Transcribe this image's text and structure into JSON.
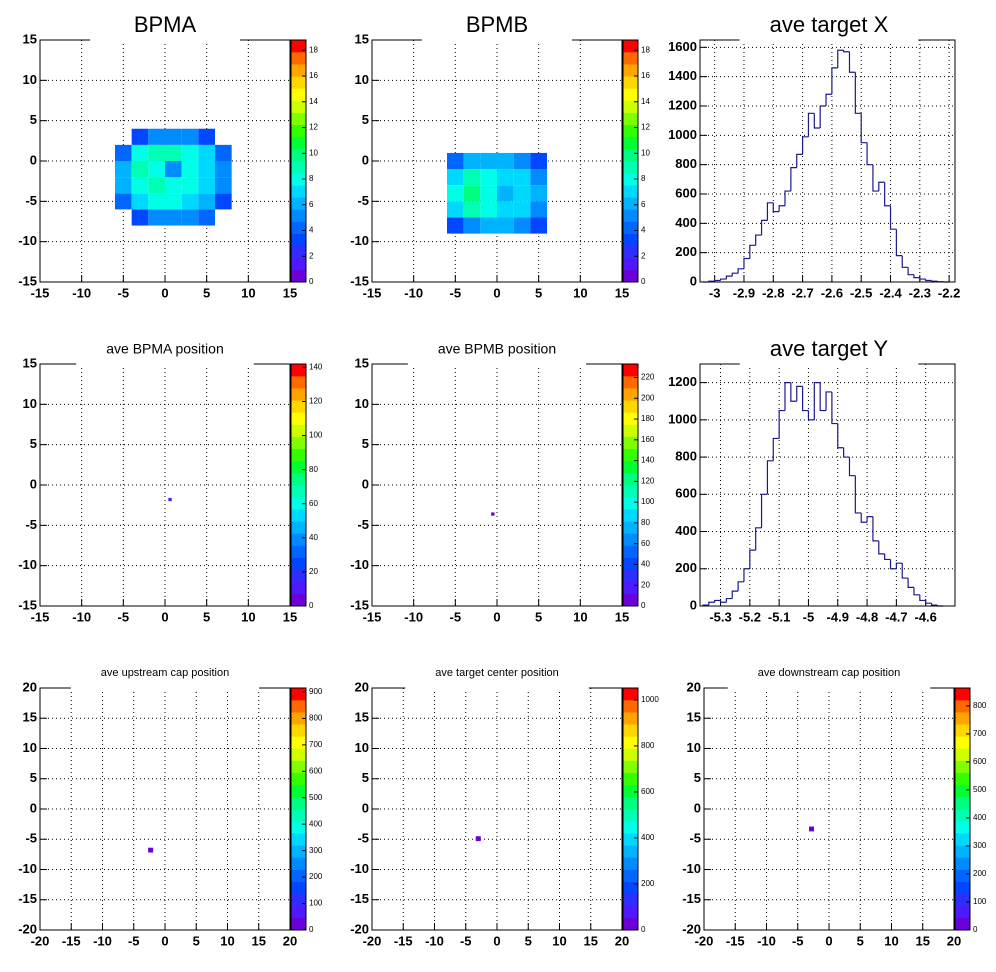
{
  "palette": [
    "#6b00d9",
    "#4d1aff",
    "#2e2eff",
    "#0047ff",
    "#0066ff",
    "#008cff",
    "#00b3ff",
    "#00d9ff",
    "#00ffe6",
    "#00ffb3",
    "#00ff80",
    "#00ff33",
    "#33ff00",
    "#80ff00",
    "#ccff00",
    "#ffff00",
    "#ffd700",
    "#ffa500",
    "#ff6a00",
    "#ff0000"
  ],
  "chart_data": [
    {
      "type": "heatmap",
      "title": "BPMA",
      "xbins": [
        -6,
        -4,
        -2,
        0,
        2,
        4,
        6,
        8
      ],
      "ybins": [
        -8,
        -6,
        -4,
        -2,
        0,
        2,
        4
      ],
      "z": [
        [
          0,
          3,
          5,
          5,
          5,
          4,
          0
        ],
        [
          4,
          7,
          8,
          8,
          7,
          6,
          3
        ],
        [
          6,
          8,
          9,
          8,
          8,
          7,
          5
        ],
        [
          6,
          9,
          8,
          5,
          8,
          7,
          5
        ],
        [
          4,
          8,
          9,
          9,
          8,
          7,
          4
        ],
        [
          0,
          3,
          5,
          5,
          5,
          3,
          0
        ]
      ],
      "xlim": [
        -15,
        15
      ],
      "ylim": [
        -15,
        15
      ],
      "xticks": [
        -15,
        -10,
        -5,
        0,
        5,
        10,
        15
      ],
      "yticks": [
        -15,
        -10,
        -5,
        0,
        5,
        10,
        15
      ],
      "zlim": [
        0,
        18.8
      ],
      "zticks": [
        0,
        2,
        4,
        6,
        8,
        10,
        12,
        14,
        16,
        18
      ],
      "grid": true
    },
    {
      "type": "heatmap",
      "title": "BPMB",
      "xbins": [
        -6,
        -4,
        -2,
        0,
        2,
        4,
        6
      ],
      "ybins": [
        -9,
        -7,
        -5,
        -3,
        -1,
        1
      ],
      "z": [
        [
          3,
          5,
          6,
          6,
          5,
          3
        ],
        [
          7,
          9,
          8,
          7,
          7,
          5
        ],
        [
          8,
          10,
          8,
          6,
          7,
          6
        ],
        [
          7,
          9,
          8,
          7,
          7,
          5
        ],
        [
          4,
          6,
          6,
          6,
          5,
          3
        ]
      ],
      "xlim": [
        -15,
        15
      ],
      "ylim": [
        -15,
        15
      ],
      "xticks": [
        -15,
        -10,
        -5,
        0,
        5,
        10,
        15
      ],
      "yticks": [
        -15,
        -10,
        -5,
        0,
        5,
        10,
        15
      ],
      "zlim": [
        0,
        18.8
      ],
      "zticks": [
        0,
        2,
        4,
        6,
        8,
        10,
        12,
        14,
        16,
        18
      ],
      "grid": true
    },
    {
      "type": "histogram",
      "title": "ave target X",
      "color": "#1a1a8c",
      "bins": [
        -3.04,
        -3.02,
        -3.0,
        -2.98,
        -2.96,
        -2.94,
        -2.92,
        -2.9,
        -2.88,
        -2.86,
        -2.84,
        -2.82,
        -2.8,
        -2.78,
        -2.76,
        -2.74,
        -2.72,
        -2.7,
        -2.68,
        -2.66,
        -2.64,
        -2.62,
        -2.6,
        -2.58,
        -2.56,
        -2.54,
        -2.52,
        -2.5,
        -2.48,
        -2.46,
        -2.44,
        -2.42,
        -2.4,
        -2.38,
        -2.36,
        -2.34,
        -2.32,
        -2.3,
        -2.28,
        -2.26,
        -2.24,
        -2.22,
        -2.2
      ],
      "counts": [
        0,
        5,
        10,
        20,
        40,
        60,
        90,
        160,
        250,
        320,
        420,
        540,
        480,
        520,
        620,
        780,
        870,
        990,
        1150,
        1050,
        1200,
        1280,
        1460,
        1580,
        1570,
        1430,
        1150,
        950,
        800,
        620,
        680,
        520,
        360,
        180,
        100,
        50,
        30,
        20,
        10,
        5,
        2,
        0
      ],
      "xlim": [
        -3.05,
        -2.18
      ],
      "ylim": [
        0,
        1650
      ],
      "xticks": [
        -3,
        -2.9,
        -2.8,
        -2.7,
        -2.6,
        -2.5,
        -2.4,
        -2.3,
        -2.2
      ],
      "yticks": [
        0,
        200,
        400,
        600,
        800,
        1000,
        1200,
        1400,
        1600
      ],
      "grid": true
    },
    {
      "type": "heatmap",
      "title": "ave BPMA position",
      "xbins": [
        0.4,
        0.8
      ],
      "ybins": [
        -2,
        -1.6
      ],
      "z": [
        [
          8
        ]
      ],
      "xlim": [
        -15,
        15
      ],
      "ylim": [
        -15,
        15
      ],
      "xticks": [
        -15,
        -10,
        -5,
        0,
        5,
        10,
        15
      ],
      "yticks": [
        -15,
        -10,
        -5,
        0,
        5,
        10,
        15
      ],
      "zlim": [
        0,
        142
      ],
      "zticks": [
        0,
        20,
        40,
        60,
        80,
        100,
        120,
        140
      ],
      "grid": true
    },
    {
      "type": "heatmap",
      "title": "ave BPMB position",
      "xbins": [
        -0.7,
        -0.3
      ],
      "ybins": [
        -3.8,
        -3.4
      ],
      "z": [
        [
          8
        ]
      ],
      "xlim": [
        -15,
        15
      ],
      "ylim": [
        -15,
        15
      ],
      "xticks": [
        -15,
        -10,
        -5,
        0,
        5,
        10,
        15
      ],
      "yticks": [
        -15,
        -10,
        -5,
        0,
        5,
        10,
        15
      ],
      "zlim": [
        0,
        233
      ],
      "zticks": [
        0,
        20,
        40,
        60,
        80,
        100,
        120,
        140,
        160,
        180,
        200,
        220
      ],
      "grid": true
    },
    {
      "type": "histogram",
      "title": "ave target Y",
      "color": "#1a1a8c",
      "bins": [
        -5.36,
        -5.34,
        -5.32,
        -5.3,
        -5.28,
        -5.26,
        -5.24,
        -5.22,
        -5.2,
        -5.18,
        -5.16,
        -5.14,
        -5.12,
        -5.1,
        -5.08,
        -5.06,
        -5.04,
        -5.02,
        -5.0,
        -4.98,
        -4.96,
        -4.94,
        -4.92,
        -4.9,
        -4.88,
        -4.86,
        -4.84,
        -4.82,
        -4.8,
        -4.78,
        -4.76,
        -4.74,
        -4.72,
        -4.7,
        -4.68,
        -4.66,
        -4.64,
        -4.62,
        -4.6,
        -4.58,
        -4.56,
        -4.54
      ],
      "counts": [
        5,
        20,
        30,
        20,
        40,
        80,
        130,
        200,
        300,
        420,
        600,
        780,
        900,
        1050,
        1200,
        1100,
        1180,
        1050,
        1000,
        1200,
        1050,
        1150,
        980,
        850,
        800,
        700,
        500,
        450,
        480,
        350,
        280,
        250,
        200,
        230,
        150,
        100,
        60,
        30,
        15,
        5,
        0
      ],
      "xlim": [
        -5.37,
        -4.5
      ],
      "ylim": [
        0,
        1300
      ],
      "xticks": [
        -5.3,
        -5.2,
        -5.1,
        -5,
        -4.9,
        -4.8,
        -4.7,
        -4.6
      ],
      "yticks": [
        0,
        200,
        400,
        600,
        800,
        1000,
        1200
      ],
      "grid": true
    },
    {
      "type": "heatmap",
      "title": "ave upstream cap position",
      "xbins": [
        -2.7,
        -1.9
      ],
      "ybins": [
        -7.2,
        -6.4
      ],
      "z": [
        [
          8
        ]
      ],
      "xlim": [
        -20,
        20
      ],
      "ylim": [
        -20,
        20
      ],
      "xticks": [
        -20,
        -15,
        -10,
        -5,
        0,
        5,
        10,
        15,
        20
      ],
      "yticks": [
        -20,
        -15,
        -10,
        -5,
        0,
        5,
        10,
        15,
        20
      ],
      "zlim": [
        0,
        915
      ],
      "zticks": [
        0,
        100,
        200,
        300,
        400,
        500,
        600,
        700,
        800,
        900
      ],
      "grid": true
    },
    {
      "type": "heatmap",
      "title": "ave target center  position",
      "xbins": [
        -3.4,
        -2.6
      ],
      "ybins": [
        -5.3,
        -4.5
      ],
      "z": [
        [
          8
        ]
      ],
      "xlim": [
        -20,
        20
      ],
      "ylim": [
        -20,
        20
      ],
      "xticks": [
        -20,
        -15,
        -10,
        -5,
        0,
        5,
        10,
        15,
        20
      ],
      "yticks": [
        -20,
        -15,
        -10,
        -5,
        0,
        5,
        10,
        15,
        20
      ],
      "zlim": [
        0,
        1052
      ],
      "zticks": [
        0,
        200,
        400,
        600,
        800,
        1000
      ],
      "grid": true
    },
    {
      "type": "heatmap",
      "title": "ave downstream cap position",
      "xbins": [
        -3.2,
        -2.4
      ],
      "ybins": [
        -3.7,
        -2.9
      ],
      "z": [
        [
          8
        ]
      ],
      "xlim": [
        -20,
        20
      ],
      "ylim": [
        -20,
        20
      ],
      "xticks": [
        -20,
        -15,
        -10,
        -5,
        0,
        5,
        10,
        15,
        20
      ],
      "yticks": [
        -20,
        -15,
        -10,
        -5,
        0,
        5,
        10,
        15,
        20
      ],
      "zlim": [
        0,
        864
      ],
      "zticks": [
        0,
        100,
        200,
        300,
        400,
        500,
        600,
        700,
        800
      ],
      "grid": true
    }
  ]
}
